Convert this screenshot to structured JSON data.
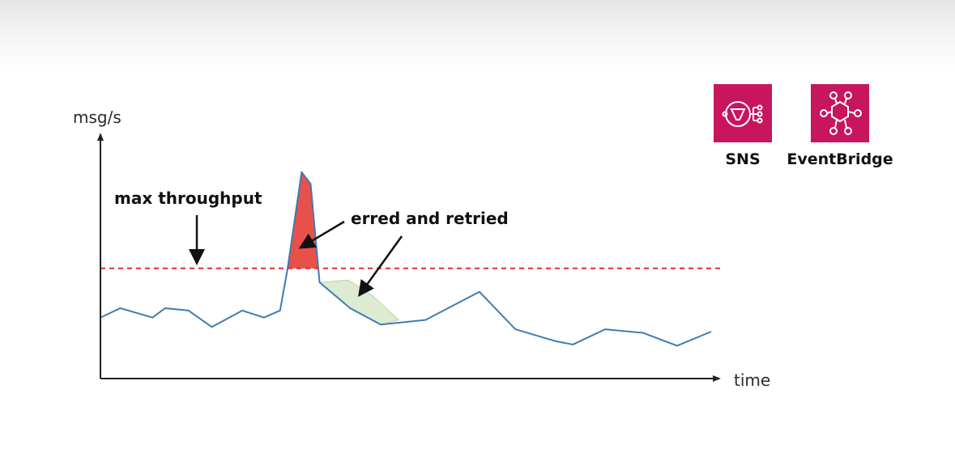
{
  "chart_data": {
    "type": "line",
    "ylabel": "msg/s",
    "xlabel": "time",
    "xlim": [
      0,
      34
    ],
    "ylim": [
      0,
      100
    ],
    "series": [
      {
        "values": [
          {
            "x": 0,
            "y": 26
          },
          {
            "x": 1.1,
            "y": 30
          },
          {
            "x": 2.9,
            "y": 26
          },
          {
            "x": 3.6,
            "y": 30
          },
          {
            "x": 4.9,
            "y": 29
          },
          {
            "x": 6.2,
            "y": 22
          },
          {
            "x": 7.9,
            "y": 29
          },
          {
            "x": 9.1,
            "y": 26
          },
          {
            "x": 10,
            "y": 29
          },
          {
            "x": 10.4,
            "y": 46
          },
          {
            "x": 11.2,
            "y": 88
          },
          {
            "x": 11.7,
            "y": 83
          },
          {
            "x": 12.2,
            "y": 41
          },
          {
            "x": 13.9,
            "y": 30
          },
          {
            "x": 15.6,
            "y": 23
          },
          {
            "x": 18.1,
            "y": 25
          },
          {
            "x": 21.1,
            "y": 37
          },
          {
            "x": 23.1,
            "y": 21
          },
          {
            "x": 25.3,
            "y": 16
          },
          {
            "x": 26.3,
            "y": 14.5
          },
          {
            "x": 28.1,
            "y": 21
          },
          {
            "x": 30.2,
            "y": 19.5
          },
          {
            "x": 32.1,
            "y": 14
          },
          {
            "x": 34,
            "y": 20
          }
        ],
        "color": "#3f7bb3"
      }
    ],
    "threshold": {
      "y": 47,
      "label": "max throughput",
      "color": "#e0302a",
      "style": "dashed"
    },
    "regions": [
      {
        "label": "erred and retried",
        "above": {
          "color": "#e8504a"
        },
        "below": {
          "color": "#ddebd2",
          "outline": [
            {
              "x": 12.2,
              "y": 41
            },
            {
              "x": 13.8,
              "y": 42
            },
            {
              "x": 15.2,
              "y": 35
            },
            {
              "x": 16.6,
              "y": 25
            },
            {
              "x": 15.6,
              "y": 23
            },
            {
              "x": 13.9,
              "y": 30
            }
          ]
        }
      }
    ],
    "grid": false
  },
  "services": [
    {
      "name": "SNS",
      "icon": "sns-icon",
      "color": "#c7155e"
    },
    {
      "name": "EventBridge",
      "icon": "eventbridge-icon",
      "color": "#c7155e"
    }
  ]
}
